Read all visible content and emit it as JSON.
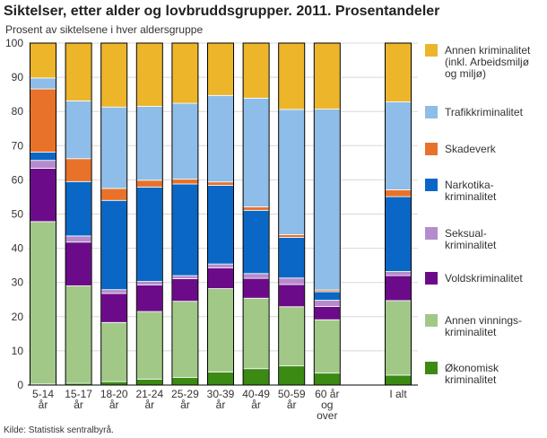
{
  "chart_data": {
    "type": "bar",
    "stacked": true,
    "title": "Siktelser, etter alder og lovbruddsgrupper. 2011. Prosentandeler",
    "ylabel": "Prosent av siktelsene i hver aldersgruppe",
    "ylim": [
      0,
      100
    ],
    "yticks": [
      0,
      10,
      20,
      30,
      40,
      50,
      60,
      70,
      80,
      90,
      100
    ],
    "grid": true,
    "legend_position": "right",
    "source": "Kilde: Statistisk sentralbyrå.",
    "categories": [
      {
        "lines": [
          "5-14",
          "år"
        ]
      },
      {
        "lines": [
          "15-17",
          "år"
        ]
      },
      {
        "lines": [
          "18-20",
          "år"
        ]
      },
      {
        "lines": [
          "21-24",
          "år"
        ]
      },
      {
        "lines": [
          "25-29",
          "år"
        ]
      },
      {
        "lines": [
          "30-39",
          "år"
        ]
      },
      {
        "lines": [
          "40-49",
          "år"
        ]
      },
      {
        "lines": [
          "50-59",
          "år"
        ]
      },
      {
        "lines": [
          "60 år",
          "og",
          "over"
        ]
      },
      {
        "lines": [
          ""
        ],
        "gap": true
      },
      {
        "lines": [
          "I alt"
        ]
      }
    ],
    "series": [
      {
        "name": "Økonomisk kriminalitet",
        "lines": [
          "Økonomisk",
          "kriminalitet"
        ],
        "color": "#3a8a13",
        "values": [
          0.3,
          0.5,
          1.0,
          1.7,
          2.2,
          3.8,
          4.8,
          5.6,
          3.5,
          null,
          2.9
        ]
      },
      {
        "name": "Annen vinnings- kriminalitet",
        "lines": [
          "Annen vinnings-",
          "kriminalitet"
        ],
        "color": "#a2c887",
        "values": [
          47.5,
          28.5,
          17.3,
          19.8,
          22.3,
          24.4,
          20.6,
          17.3,
          15.6,
          null,
          21.8
        ]
      },
      {
        "name": "Voldskriminalitet",
        "lines": [
          "Voldskriminalitet"
        ],
        "color": "#6c0b8a",
        "values": [
          15.6,
          12.8,
          8.5,
          7.8,
          6.6,
          6.1,
          5.8,
          6.5,
          3.9,
          null,
          7.3
        ]
      },
      {
        "name": "Seksual- kriminalitet",
        "lines": [
          "Seksual-",
          "kriminalitet"
        ],
        "color": "#b58ccb",
        "values": [
          2.3,
          1.8,
          1.1,
          1.0,
          0.9,
          1.1,
          1.4,
          1.9,
          1.8,
          null,
          1.2
        ]
      },
      {
        "name": "Narkotika- kriminalitet",
        "lines": [
          "Narkotika-",
          "kriminalitet"
        ],
        "color": "#0b67c5",
        "values": [
          2.4,
          15.9,
          26.1,
          27.6,
          26.8,
          23.0,
          18.5,
          11.9,
          2.5,
          null,
          21.9
        ]
      },
      {
        "name": "Skadeverk",
        "lines": [
          "Skadeverk"
        ],
        "color": "#e8722a",
        "values": [
          18.5,
          6.7,
          3.5,
          2.0,
          1.4,
          1.0,
          1.0,
          0.8,
          0.5,
          null,
          2.0
        ]
      },
      {
        "name": "Trafikkriminalitet",
        "lines": [
          "Trafikkriminalitet"
        ],
        "color": "#8dbde8",
        "values": [
          3.2,
          16.9,
          23.8,
          21.6,
          22.2,
          25.3,
          31.8,
          36.6,
          52.9,
          null,
          25.7
        ]
      },
      {
        "name": "Annen kriminalitet (inkl. Arbeidsmiljø og miljø)",
        "lines": [
          "Annen kriminalitet",
          "(inkl. Arbeidsmiljø",
          "og miljø)"
        ],
        "color": "#ecb52a",
        "values": [
          10.2,
          16.9,
          18.7,
          18.5,
          17.6,
          15.3,
          16.1,
          19.4,
          19.3,
          null,
          17.2
        ]
      }
    ]
  }
}
